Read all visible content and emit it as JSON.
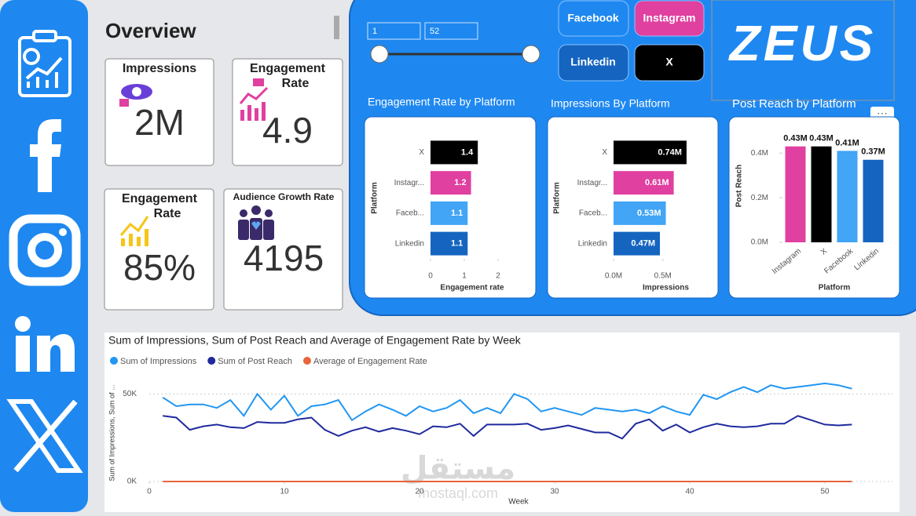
{
  "overview": {
    "title": "Overview",
    "cards": [
      {
        "label": "Impressions",
        "value": "2M"
      },
      {
        "label": "Engagement Rate",
        "value": "4.9"
      },
      {
        "label": "Engagement Rate",
        "value": "85%"
      },
      {
        "label": "Audience Growth Rate",
        "value": "4195"
      }
    ]
  },
  "week_slicer": {
    "from": "1",
    "to": "52"
  },
  "platform_buttons": [
    "Facebook",
    "Instagram",
    "Linkedin",
    "X"
  ],
  "logo": "ZEUS",
  "watermark": {
    "arabic": "مستقل",
    "latin": "mostaql.com"
  },
  "chart_data": [
    {
      "type": "hbar",
      "title": "Engagement Rate by Platform",
      "categories": [
        "X",
        "Instagr...",
        "Faceb...",
        "Linkedin"
      ],
      "values": [
        1.4,
        1.2,
        1.1,
        1.1
      ],
      "colors": [
        "#000000",
        "#e040a0",
        "#42a5f5",
        "#1565c0"
      ],
      "xlim": [
        0,
        2
      ],
      "xticks": [
        0,
        1,
        2
      ],
      "x_label": "Engagement rate",
      "y_label": "Platform"
    },
    {
      "type": "hbar",
      "title": "Impressions By Platform",
      "categories": [
        "X",
        "Instagr...",
        "Faceb...",
        "Linkedin"
      ],
      "values": [
        740000,
        610000,
        530000,
        470000
      ],
      "value_labels": [
        "0.74M",
        "0.61M",
        "0.53M",
        "0.47M"
      ],
      "colors": [
        "#000000",
        "#e040a0",
        "#42a5f5",
        "#1565c0"
      ],
      "xlim": [
        0,
        900000
      ],
      "xticks": [
        {
          "value": 0,
          "label": "0.0M"
        },
        {
          "value": 500000,
          "label": "0.5M"
        }
      ],
      "x_label": "Impressions",
      "y_label": "Platform"
    },
    {
      "type": "vbar",
      "title": "Post Reach by Platform",
      "categories": [
        "Instagram",
        "X",
        "Facebook",
        "Linkedin"
      ],
      "values": [
        430000,
        430000,
        410000,
        370000
      ],
      "value_labels": [
        "0.43M",
        "0.43M",
        "0.41M",
        "0.37M"
      ],
      "colors": [
        "#e040a0",
        "#000000",
        "#42a5f5",
        "#1565c0"
      ],
      "ylim": [
        0,
        450000
      ],
      "yticks": [
        {
          "value": 0,
          "label": "0.0M"
        },
        {
          "value": 200000,
          "label": "0.2M"
        },
        {
          "value": 400000,
          "label": "0.4M"
        }
      ],
      "x_label": "Platform",
      "y_label": "Post Reach"
    },
    {
      "type": "line",
      "title": "Sum of Impressions, Sum of Post Reach and Average of Engagement Rate by Week",
      "x": [
        1,
        2,
        3,
        4,
        5,
        6,
        7,
        8,
        9,
        10,
        11,
        12,
        13,
        14,
        15,
        16,
        17,
        18,
        19,
        20,
        21,
        22,
        23,
        24,
        25,
        26,
        27,
        28,
        29,
        30,
        31,
        32,
        33,
        34,
        35,
        36,
        37,
        38,
        39,
        40,
        41,
        42,
        43,
        44,
        45,
        46,
        47,
        48,
        49,
        50,
        51,
        52
      ],
      "series": [
        {
          "name": "Sum of Impressions",
          "color": "#2196f3",
          "values": [
            48000,
            43000,
            44000,
            44000,
            42000,
            46500,
            37500,
            50000,
            41000,
            49000,
            37500,
            43000,
            44000,
            46500,
            35000,
            40000,
            44000,
            41000,
            37500,
            43000,
            40000,
            42000,
            46500,
            39000,
            42000,
            39000,
            50000,
            47000,
            40000,
            42000,
            40000,
            38000,
            42000,
            41000,
            40000,
            41000,
            39000,
            43000,
            40000,
            38000,
            49500,
            47000,
            51000,
            54000,
            51000,
            55000,
            53000,
            54000,
            55000,
            56000,
            55000,
            53000
          ]
        },
        {
          "name": "Sum of Post Reach",
          "color": "#1f2a9c",
          "values": [
            37500,
            36500,
            29500,
            31500,
            32500,
            31000,
            30500,
            34000,
            33500,
            33500,
            35500,
            36500,
            29500,
            26000,
            29000,
            31000,
            28500,
            30500,
            29000,
            27000,
            31500,
            31000,
            33000,
            26000,
            32500,
            32500,
            32500,
            33000,
            29500,
            30500,
            32000,
            30000,
            28000,
            28000,
            24500,
            33000,
            35500,
            29000,
            32500,
            28000,
            31000,
            33000,
            31500,
            31000,
            31500,
            33000,
            33000,
            37500,
            35000,
            32500,
            32000,
            32500
          ]
        },
        {
          "name": "Average of Engagement Rate",
          "color": "#e8643c",
          "values": [
            1.2,
            1.2,
            1.2,
            1.2,
            1.2,
            1.2,
            1.2,
            1.2,
            1.2,
            1.2,
            1.2,
            1.2,
            1.2,
            1.2,
            1.2,
            1.2,
            1.2,
            1.2,
            1.2,
            1.2,
            1.2,
            1.2,
            1.2,
            1.2,
            1.2,
            1.2,
            1.2,
            1.2,
            1.2,
            1.2,
            1.2,
            1.2,
            1.2,
            1.2,
            1.2,
            1.2,
            1.2,
            1.2,
            1.2,
            1.2,
            1.2,
            1.2,
            1.2,
            1.2,
            1.2,
            1.2,
            1.2,
            1.2,
            1.2,
            1.2,
            1.2,
            1.2
          ]
        }
      ],
      "xlim": [
        0,
        55
      ],
      "xticks": [
        0,
        10,
        20,
        30,
        40,
        50
      ],
      "ylim": [
        0,
        60000
      ],
      "yticks": [
        {
          "value": 0,
          "label": "0K"
        },
        {
          "value": 50000,
          "label": "50K"
        }
      ],
      "grid": true,
      "x_label": "Week",
      "y_label": "Sum of Impressions, Sum of ..."
    }
  ]
}
